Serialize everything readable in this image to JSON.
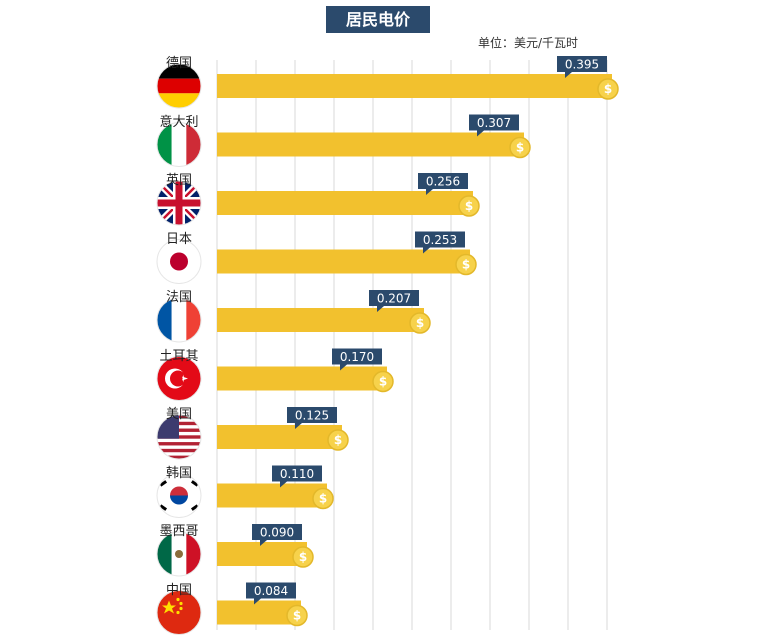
{
  "chart_data": {
    "type": "bar",
    "orientation": "horizontal",
    "title": "居民电价",
    "unit_label": "单位：美元/千瓦时",
    "categories": [
      "德国",
      "意大利",
      "英国",
      "日本",
      "法国",
      "土耳其",
      "美国",
      "韩国",
      "墨西哥",
      "中国"
    ],
    "values": [
      0.395,
      0.307,
      0.256,
      0.253,
      0.207,
      0.17,
      0.125,
      0.11,
      0.09,
      0.084
    ],
    "value_labels": [
      "0.395",
      "0.307",
      "0.256",
      "0.253",
      "0.207",
      "0.170",
      "0.125",
      "0.110",
      "0.090",
      "0.084"
    ],
    "flag_icons": [
      "germany-flag-icon",
      "italy-flag-icon",
      "uk-flag-icon",
      "japan-flag-icon",
      "france-flag-icon",
      "turkey-flag-icon",
      "usa-flag-icon",
      "korea-flag-icon",
      "mexico-flag-icon",
      "china-flag-icon"
    ],
    "xlim": [
      0,
      0.4
    ],
    "grid": true,
    "colors": {
      "bar": "#f2c12e",
      "label_bg": "#2b4a6c",
      "coin": "#f7d24b",
      "title_bg": "#2b4a6c"
    }
  }
}
